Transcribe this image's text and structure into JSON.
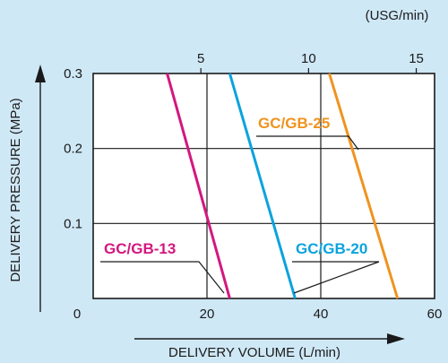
{
  "chart_data": {
    "type": "line",
    "xlabel": "DELIVERY VOLUME (L/min)",
    "ylabel": "DELIVERY PRESSURE (MPa)",
    "secondary_x_unit": "(USG/min)",
    "xlim": [
      0,
      60
    ],
    "ylim": [
      0,
      0.3
    ],
    "x_ticks": [
      0,
      20,
      40,
      60
    ],
    "y_ticks": [
      0.1,
      0.2,
      0.3
    ],
    "secondary_x_ticks": [
      5,
      10,
      15
    ],
    "secondary_x_lim": [
      0,
      15.85
    ],
    "grid": true,
    "series": [
      {
        "name": "GC/GB-13",
        "color": "#d4177f",
        "x": [
          24,
          13
        ],
        "y": [
          0,
          0.3
        ]
      },
      {
        "name": "GC/GB-20",
        "color": "#0aa3dd",
        "x": [
          35.5,
          24
        ],
        "y": [
          0,
          0.3
        ]
      },
      {
        "name": "GC/GB-25",
        "color": "#f0931f",
        "x": [
          53.5,
          41.5
        ],
        "y": [
          0,
          0.3
        ]
      }
    ]
  }
}
